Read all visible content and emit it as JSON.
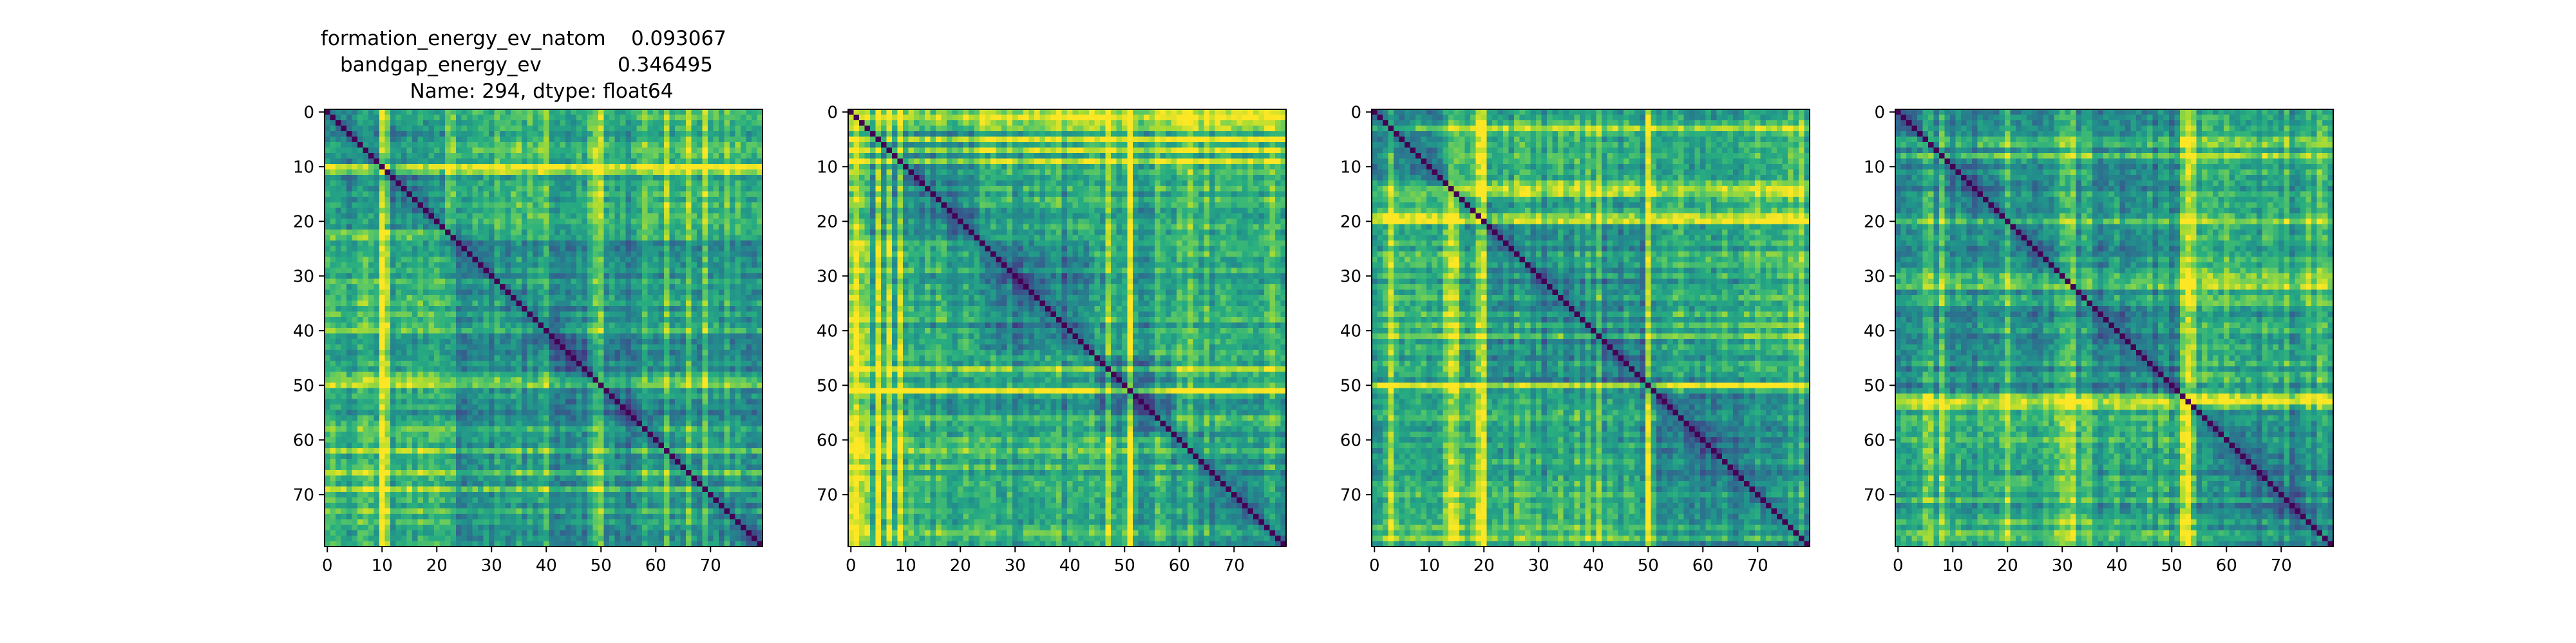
{
  "figure": {
    "title_lines": [
      "formation_energy_ev_natom    0.093067",
      "bandgap_energy_ev            0.346495",
      "Name: 294, dtype: float64"
    ]
  },
  "colormap": {
    "name": "viridis",
    "stops": [
      "#440154",
      "#472d7b",
      "#3b528b",
      "#2c728e",
      "#21918c",
      "#28ae80",
      "#5ec962",
      "#addc30",
      "#fde725"
    ]
  },
  "chart_data": [
    {
      "type": "heatmap",
      "title": "",
      "xlabel": "",
      "ylabel": "",
      "n_rows": 80,
      "n_cols": 80,
      "xlim": [
        0,
        79
      ],
      "ylim": [
        79,
        0
      ],
      "xticks": [
        0,
        10,
        20,
        30,
        40,
        50,
        60,
        70
      ],
      "yticks": [
        0,
        10,
        20,
        30,
        40,
        50,
        60,
        70
      ],
      "diagonal_value": 0,
      "value_range": [
        0,
        1
      ],
      "bright_rows": [
        10,
        11,
        23,
        50,
        58,
        62,
        69
      ],
      "bright_cols": [
        10,
        11,
        22,
        40,
        49,
        50,
        66
      ],
      "block_breaks": [
        22
      ],
      "grid": false
    },
    {
      "type": "heatmap",
      "title": "",
      "xlabel": "",
      "ylabel": "",
      "n_rows": 80,
      "n_cols": 80,
      "xlim": [
        0,
        79
      ],
      "ylim": [
        79,
        0
      ],
      "xticks": [
        0,
        10,
        20,
        30,
        40,
        50,
        60,
        70
      ],
      "yticks": [
        0,
        10,
        20,
        30,
        40,
        50,
        60,
        70
      ],
      "diagonal_value": 0,
      "value_range": [
        0,
        1
      ],
      "bright_rows": [
        0,
        1,
        2,
        3,
        5,
        7,
        9,
        47,
        51,
        62
      ],
      "bright_cols": [
        0,
        1,
        2,
        3,
        5,
        7,
        9,
        51,
        60,
        76,
        77
      ],
      "block_breaks": [
        24,
        45,
        59
      ],
      "grid": false
    },
    {
      "type": "heatmap",
      "title": "",
      "xlabel": "",
      "ylabel": "",
      "n_rows": 80,
      "n_cols": 80,
      "xlim": [
        0,
        79
      ],
      "ylim": [
        79,
        0
      ],
      "xticks": [
        0,
        10,
        20,
        30,
        40,
        50,
        60,
        70
      ],
      "yticks": [
        0,
        10,
        20,
        30,
        40,
        50,
        60,
        70
      ],
      "diagonal_value": 0,
      "value_range": [
        0,
        1
      ],
      "bright_rows": [
        3,
        13,
        14,
        19,
        20,
        50,
        78
      ],
      "bright_cols": [
        3,
        14,
        15,
        19,
        20,
        41,
        50
      ],
      "block_breaks": [
        16,
        52
      ],
      "grid": false
    },
    {
      "type": "heatmap",
      "title": "",
      "xlabel": "",
      "ylabel": "",
      "n_rows": 80,
      "n_cols": 80,
      "xlim": [
        0,
        79
      ],
      "ylim": [
        79,
        0
      ],
      "xticks": [
        0,
        10,
        20,
        30,
        40,
        50,
        60,
        70
      ],
      "yticks": [
        0,
        10,
        20,
        30,
        40,
        50,
        60,
        70
      ],
      "diagonal_value": 0,
      "value_range": [
        0,
        1
      ],
      "bright_rows": [
        5,
        6,
        30,
        31,
        52,
        53,
        77
      ],
      "bright_cols": [
        8,
        20,
        32,
        52,
        53,
        54,
        78
      ],
      "block_breaks": [
        54
      ],
      "grid": false
    }
  ]
}
